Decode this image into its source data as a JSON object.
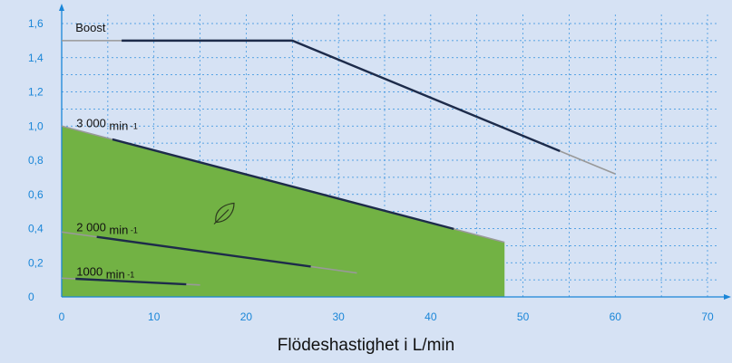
{
  "chart_data": {
    "type": "line",
    "title": "",
    "xlabel": "Flödeshastighet i L/min",
    "ylabel": "",
    "xlim": [
      0,
      70
    ],
    "ylim": [
      0,
      1.6
    ],
    "x_ticks": [
      "0",
      "10",
      "20",
      "30",
      "40",
      "50",
      "60",
      "70"
    ],
    "y_ticks": [
      "0",
      "0,2",
      "0,4",
      "0,6",
      "0,8",
      "1,0",
      "1,2",
      "1,4",
      "1,6"
    ],
    "x_tick_values": [
      0,
      10,
      20,
      30,
      40,
      50,
      60,
      70
    ],
    "y_tick_values": [
      0,
      0.2,
      0.4,
      0.6,
      0.8,
      1.0,
      1.2,
      1.4,
      1.6
    ],
    "grid": true,
    "eco_region": {
      "color": "#72b244",
      "points": [
        [
          0,
          1.0
        ],
        [
          48,
          0.32
        ],
        [
          48,
          0
        ],
        [
          0,
          0
        ]
      ]
    },
    "eco_icon": "leaf-icon",
    "series": [
      {
        "name": "Boost",
        "label_parts": [
          "Boost"
        ],
        "x": [
          0,
          25,
          60
        ],
        "y": [
          1.5,
          1.5,
          0.72
        ],
        "highlight_x": [
          6.5,
          54
        ],
        "label_at": [
          1.5,
          1.58
        ]
      },
      {
        "name": "3000 min⁻¹",
        "label_parts": [
          "3 000",
          "min",
          "-1"
        ],
        "x": [
          0,
          48
        ],
        "y": [
          1.0,
          0.32
        ],
        "highlight_x": [
          5.5,
          42.5
        ],
        "label_at": [
          1.6,
          1.02
        ]
      },
      {
        "name": "2000 min⁻¹",
        "label_parts": [
          "2 000",
          "min",
          "-1"
        ],
        "x": [
          0,
          32
        ],
        "y": [
          0.38,
          0.14
        ],
        "highlight_x": [
          3.8,
          27
        ],
        "label_at": [
          1.6,
          0.41
        ]
      },
      {
        "name": "1000 min⁻¹",
        "label_parts": [
          "1000",
          "min",
          "-1"
        ],
        "x": [
          0,
          15
        ],
        "y": [
          0.11,
          0.07
        ],
        "highlight_x": [
          1.5,
          13.5
        ],
        "label_at": [
          1.6,
          0.15
        ]
      }
    ],
    "colors": {
      "background": "#d6e2f4",
      "grid": "#2f8fde",
      "axis": "#1a86d8",
      "tick_label": "#1a86d8",
      "line_highlight": "#1d2b4a",
      "line_extension": "#999999"
    }
  }
}
